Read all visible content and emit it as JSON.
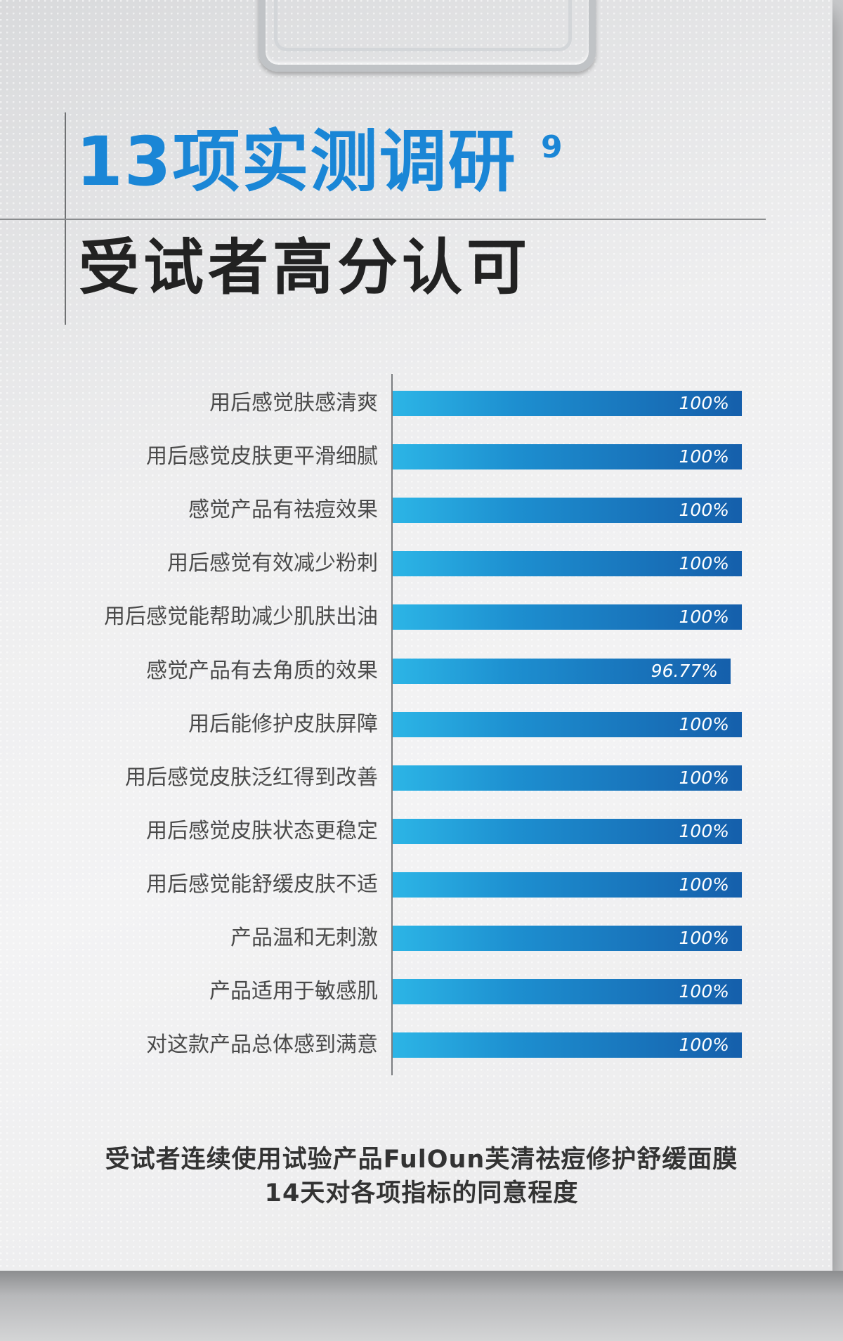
{
  "title": {
    "main": "13项实测调研",
    "superscript": "9",
    "subtitle": "受试者高分认可"
  },
  "chart_data": {
    "type": "bar",
    "orientation": "horizontal",
    "categories": [
      "用后感觉肤感清爽",
      "用后感觉皮肤更平滑细腻",
      "感觉产品有祛痘效果",
      "用后感觉有效减少粉刺",
      "用后感觉能帮助减少肌肤出油",
      "感觉产品有去角质的效果",
      "用后能修护皮肤屏障",
      "用后感觉皮肤泛红得到改善",
      "用后感觉皮肤状态更稳定",
      "用后感觉能舒缓皮肤不适",
      "产品温和无刺激",
      "产品适用于敏感肌",
      "对这款产品总体感到满意"
    ],
    "values": [
      100,
      100,
      100,
      100,
      100,
      96.77,
      100,
      100,
      100,
      100,
      100,
      100,
      100
    ],
    "value_labels": [
      "100%",
      "100%",
      "100%",
      "100%",
      "100%",
      "96.77%",
      "100%",
      "100%",
      "100%",
      "100%",
      "100%",
      "100%",
      "100%"
    ],
    "xlim": [
      0,
      100
    ],
    "title": "",
    "xlabel": "",
    "ylabel": "",
    "grid": false,
    "bar_color_start": "#2cb5e6",
    "bar_color_end": "#155fab"
  },
  "footnote": {
    "line1": "受试者连续使用试验产品FulOun芙清祛痘修护舒缓面膜",
    "line2": "14天对各项指标的同意程度"
  },
  "colors": {
    "title_blue": "#1a86d6",
    "subtitle_dark": "#222222",
    "label_gray": "#4a4a4a"
  }
}
